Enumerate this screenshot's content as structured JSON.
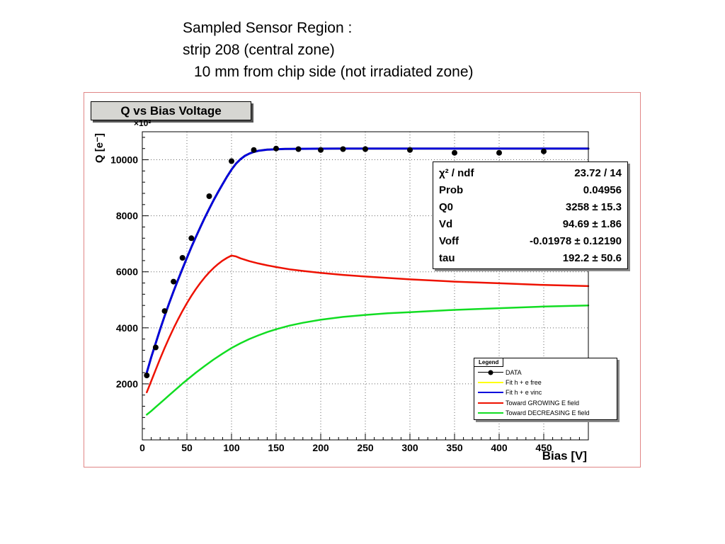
{
  "header": {
    "line1": "Sampled Sensor Region :",
    "line2": "strip 208 (central zone)",
    "line3": "10 mm from chip side (not irradiated zone)"
  },
  "stats": {
    "rows": [
      {
        "label": "χ² / ndf",
        "value": "23.72 / 14"
      },
      {
        "label": "Prob",
        "value": "0.04956"
      },
      {
        "label": "Q0",
        "value": "3258 ± 15.3"
      },
      {
        "label": "Vd",
        "value": "94.69 ± 1.86"
      },
      {
        "label": "Voff",
        "value": "-0.01978 ± 0.12190"
      },
      {
        "label": "tau",
        "value": "192.2 ± 50.6"
      }
    ]
  },
  "legend": {
    "title": "Legend",
    "entries": [
      {
        "label": "DATA",
        "color": "#000000",
        "marker": "circle"
      },
      {
        "label": "Fit h + e free",
        "color": "#ffff00",
        "marker": "line"
      },
      {
        "label": "Fit h + e vinc",
        "color": "#0000dd",
        "marker": "line"
      },
      {
        "label": "Toward GROWING E field",
        "color": "#ee1100",
        "marker": "line"
      },
      {
        "label": "Toward DECREASING E field",
        "color": "#11dd22",
        "marker": "line"
      }
    ]
  },
  "chart_data": {
    "type": "line",
    "title": "Q vs Bias Voltage",
    "xlabel": "Bias [V]",
    "ylabel": "Q [e⁻]",
    "y_multiplier": "×10²",
    "xlim": [
      0,
      500
    ],
    "ylim": [
      0,
      11000
    ],
    "x_ticks": [
      0,
      50,
      100,
      150,
      200,
      250,
      300,
      350,
      400,
      450
    ],
    "y_ticks": [
      2000,
      4000,
      6000,
      8000,
      10000
    ],
    "grid": true,
    "legend_position": "lower-right",
    "series": [
      {
        "name": "Fit h + e free",
        "type": "line",
        "color": "#ffff00",
        "width": 3,
        "x": [
          5,
          10,
          15,
          20,
          25,
          30,
          35,
          40,
          45,
          50,
          55,
          60,
          65,
          70,
          75,
          80,
          85,
          90,
          95,
          100,
          105,
          110,
          115,
          120,
          125,
          130,
          140,
          150,
          160,
          175,
          200,
          225,
          250,
          300,
          350,
          400,
          450,
          500
        ],
        "y": [
          2400,
          2950,
          3450,
          3950,
          4420,
          4870,
          5300,
          5710,
          6110,
          6500,
          6880,
          7240,
          7590,
          7930,
          8250,
          8560,
          8850,
          9130,
          9400,
          9650,
          9860,
          10020,
          10140,
          10220,
          10280,
          10320,
          10360,
          10375,
          10385,
          10390,
          10395,
          10398,
          10400,
          10400,
          10400,
          10400,
          10400,
          10400
        ]
      },
      {
        "name": "Fit h + e vinc",
        "type": "line",
        "color": "#0000dd",
        "width": 3,
        "x": [
          5,
          10,
          15,
          20,
          25,
          30,
          35,
          40,
          45,
          50,
          55,
          60,
          65,
          70,
          75,
          80,
          85,
          90,
          95,
          100,
          105,
          110,
          115,
          120,
          125,
          130,
          140,
          150,
          160,
          175,
          200,
          225,
          250,
          300,
          350,
          400,
          450,
          500
        ],
        "y": [
          2400,
          2950,
          3450,
          3950,
          4420,
          4870,
          5300,
          5710,
          6110,
          6500,
          6880,
          7240,
          7590,
          7930,
          8250,
          8560,
          8850,
          9130,
          9400,
          9650,
          9860,
          10020,
          10140,
          10220,
          10280,
          10320,
          10360,
          10375,
          10385,
          10390,
          10395,
          10398,
          10400,
          10400,
          10400,
          10400,
          10400,
          10400
        ]
      },
      {
        "name": "Toward GROWING E field",
        "type": "line",
        "color": "#ee1100",
        "width": 2.5,
        "x": [
          5,
          10,
          15,
          20,
          25,
          30,
          35,
          40,
          45,
          50,
          55,
          60,
          65,
          70,
          75,
          80,
          85,
          90,
          95,
          100,
          105,
          110,
          120,
          130,
          140,
          150,
          165,
          180,
          200,
          225,
          250,
          275,
          300,
          350,
          400,
          450,
          500
        ],
        "y": [
          1700,
          2100,
          2500,
          2900,
          3280,
          3640,
          3980,
          4300,
          4600,
          4880,
          5140,
          5380,
          5600,
          5800,
          5980,
          6140,
          6280,
          6400,
          6500,
          6580,
          6550,
          6480,
          6380,
          6300,
          6230,
          6170,
          6090,
          6030,
          5960,
          5890,
          5830,
          5780,
          5730,
          5650,
          5590,
          5530,
          5490
        ]
      },
      {
        "name": "Toward DECREASING E field",
        "type": "line",
        "color": "#11dd22",
        "width": 2.5,
        "x": [
          5,
          10,
          15,
          20,
          25,
          30,
          35,
          40,
          45,
          50,
          60,
          70,
          80,
          90,
          100,
          110,
          120,
          130,
          140,
          150,
          165,
          180,
          200,
          225,
          250,
          275,
          300,
          350,
          400,
          450,
          500
        ],
        "y": [
          900,
          1030,
          1170,
          1310,
          1450,
          1590,
          1730,
          1870,
          2010,
          2140,
          2400,
          2640,
          2870,
          3080,
          3280,
          3450,
          3600,
          3730,
          3850,
          3950,
          4080,
          4180,
          4290,
          4390,
          4460,
          4520,
          4560,
          4640,
          4700,
          4760,
          4800
        ]
      },
      {
        "name": "DATA",
        "type": "scatter",
        "color": "#000000",
        "x": [
          5,
          15,
          25,
          35,
          45,
          55,
          75,
          100,
          125,
          150,
          175,
          200,
          225,
          250,
          300,
          350,
          400,
          450
        ],
        "y": [
          2300,
          3300,
          4600,
          5650,
          6500,
          7200,
          8700,
          9950,
          10350,
          10400,
          10380,
          10350,
          10380,
          10380,
          10350,
          10250,
          10250,
          10300
        ]
      }
    ]
  }
}
